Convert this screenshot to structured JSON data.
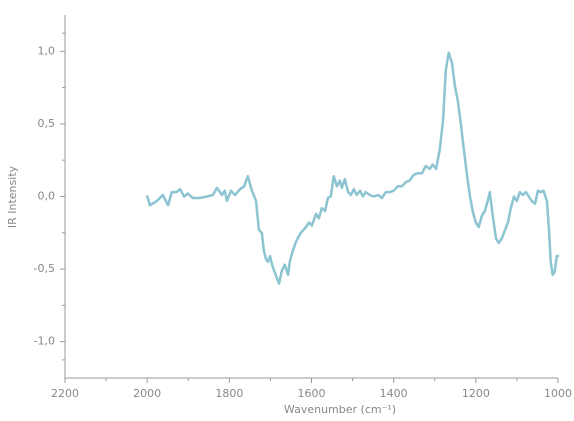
{
  "chart_data": {
    "type": "line",
    "x_label": "Wavenumber (cm⁻¹)",
    "y_label": "IR Intensity",
    "xlim": [
      2200,
      1000
    ],
    "ylim": [
      -1.25,
      1.25
    ],
    "xticks": [
      2200,
      2000,
      1800,
      1600,
      1400,
      1200,
      1000
    ],
    "yticks": [
      {
        "value": -1.0,
        "label": "-1,0"
      },
      {
        "value": -0.5,
        "label": "-0,5"
      },
      {
        "value": 0.0,
        "label": "0,0"
      },
      {
        "value": 0.5,
        "label": "0,5"
      },
      {
        "value": 1.0,
        "label": "1,0"
      }
    ],
    "grid": false,
    "series": [
      {
        "color": "#8cc4d1",
        "x": [
          2000,
          1993,
          1976,
          1962,
          1949,
          1940,
          1928,
          1920,
          1910,
          1901,
          1889,
          1872,
          1855,
          1840,
          1830,
          1818,
          1811,
          1806,
          1796,
          1786,
          1774,
          1764,
          1755,
          1745,
          1735,
          1728,
          1721,
          1716,
          1711,
          1706,
          1701,
          1696,
          1691,
          1687,
          1679,
          1672,
          1665,
          1657,
          1653,
          1645,
          1636,
          1626,
          1616,
          1606,
          1599,
          1589,
          1582,
          1575,
          1567,
          1560,
          1553,
          1546,
          1538,
          1531,
          1526,
          1519,
          1511,
          1504,
          1497,
          1490,
          1482,
          1475,
          1468,
          1458,
          1448,
          1438,
          1429,
          1419,
          1409,
          1400,
          1390,
          1380,
          1370,
          1361,
          1351,
          1341,
          1331,
          1322,
          1312,
          1305,
          1297,
          1288,
          1280,
          1273,
          1266,
          1258,
          1251,
          1244,
          1236,
          1229,
          1222,
          1215,
          1207,
          1200,
          1193,
          1185,
          1178,
          1171,
          1166,
          1159,
          1151,
          1144,
          1137,
          1129,
          1122,
          1115,
          1107,
          1100,
          1093,
          1086,
          1078,
          1071,
          1064,
          1056,
          1049,
          1042,
          1035,
          1027,
          1022,
          1018,
          1013,
          1008,
          1003,
          1000
        ],
        "values": [
          0.0,
          -0.06,
          -0.03,
          0.01,
          -0.06,
          0.03,
          0.03,
          0.05,
          0.0,
          0.02,
          -0.01,
          -0.01,
          0.0,
          0.01,
          0.06,
          0.01,
          0.04,
          -0.03,
          0.04,
          0.01,
          0.05,
          0.07,
          0.14,
          0.04,
          -0.03,
          -0.23,
          -0.25,
          -0.37,
          -0.43,
          -0.45,
          -0.41,
          -0.47,
          -0.51,
          -0.54,
          -0.6,
          -0.51,
          -0.47,
          -0.54,
          -0.45,
          -0.37,
          -0.3,
          -0.25,
          -0.22,
          -0.18,
          -0.2,
          -0.12,
          -0.15,
          -0.08,
          -0.1,
          -0.01,
          0.0,
          0.14,
          0.07,
          0.11,
          0.06,
          0.12,
          0.03,
          0.01,
          0.05,
          0.01,
          0.04,
          0.0,
          0.03,
          0.01,
          0.0,
          0.01,
          -0.01,
          0.03,
          0.03,
          0.04,
          0.07,
          0.07,
          0.1,
          0.11,
          0.15,
          0.16,
          0.16,
          0.21,
          0.19,
          0.22,
          0.19,
          0.32,
          0.52,
          0.87,
          0.99,
          0.92,
          0.76,
          0.66,
          0.49,
          0.32,
          0.16,
          0.01,
          -0.11,
          -0.18,
          -0.21,
          -0.13,
          -0.1,
          -0.03,
          0.03,
          -0.13,
          -0.29,
          -0.32,
          -0.29,
          -0.23,
          -0.18,
          -0.08,
          0.0,
          -0.03,
          0.03,
          0.01,
          0.03,
          0.0,
          -0.03,
          -0.05,
          0.04,
          0.03,
          0.04,
          -0.03,
          -0.23,
          -0.44,
          -0.54,
          -0.52,
          -0.41,
          -0.41
        ]
      }
    ]
  }
}
